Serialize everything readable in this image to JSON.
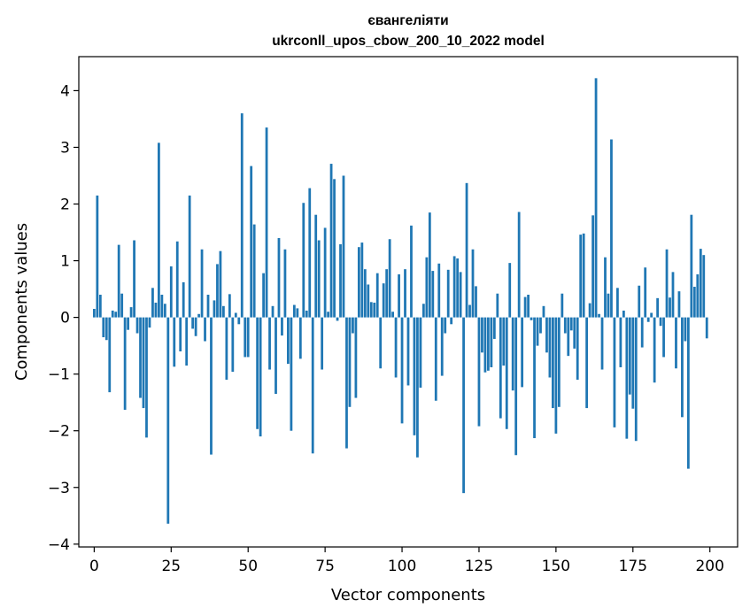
{
  "chart_data": {
    "type": "bar",
    "title_line1": "євангеліяти",
    "title_line2": "ukrconll_upos_cbow_200_10_2022 model",
    "xlabel": "Vector components",
    "ylabel": "Components values",
    "xlim": [
      -5,
      209
    ],
    "ylim": [
      -4.05,
      4.6
    ],
    "xticks": [
      0,
      25,
      50,
      75,
      100,
      125,
      150,
      175,
      200
    ],
    "yticks": [
      -4,
      -3,
      -2,
      -1,
      0,
      1,
      2,
      3,
      4
    ],
    "bar_color": "#1f77b4",
    "x": [
      0,
      1,
      2,
      3,
      4,
      5,
      6,
      7,
      8,
      9,
      10,
      11,
      12,
      13,
      14,
      15,
      16,
      17,
      18,
      19,
      20,
      21,
      22,
      23,
      24,
      25,
      26,
      27,
      28,
      29,
      30,
      31,
      32,
      33,
      34,
      35,
      36,
      37,
      38,
      39,
      40,
      41,
      42,
      43,
      44,
      45,
      46,
      47,
      48,
      49,
      50,
      51,
      52,
      53,
      54,
      55,
      56,
      57,
      58,
      59,
      60,
      61,
      62,
      63,
      64,
      65,
      66,
      67,
      68,
      69,
      70,
      71,
      72,
      73,
      74,
      75,
      76,
      77,
      78,
      79,
      80,
      81,
      82,
      83,
      84,
      85,
      86,
      87,
      88,
      89,
      90,
      91,
      92,
      93,
      94,
      95,
      96,
      97,
      98,
      99,
      100,
      101,
      102,
      103,
      104,
      105,
      106,
      107,
      108,
      109,
      110,
      111,
      112,
      113,
      114,
      115,
      116,
      117,
      118,
      119,
      120,
      121,
      122,
      123,
      124,
      125,
      126,
      127,
      128,
      129,
      130,
      131,
      132,
      133,
      134,
      135,
      136,
      137,
      138,
      139,
      140,
      141,
      142,
      143,
      144,
      145,
      146,
      147,
      148,
      149,
      150,
      151,
      152,
      153,
      154,
      155,
      156,
      157,
      158,
      159,
      160,
      161,
      162,
      163,
      164,
      165,
      166,
      167,
      168,
      169,
      170,
      171,
      172,
      173,
      174,
      175,
      176,
      177,
      178,
      179,
      180,
      181,
      182,
      183,
      184,
      185,
      186,
      187,
      188,
      189,
      190,
      191,
      192,
      193,
      194,
      195,
      196,
      197,
      198,
      199
    ],
    "values": [
      0.15,
      2.15,
      0.4,
      -0.35,
      -0.4,
      -1.32,
      0.12,
      0.1,
      1.28,
      0.42,
      -1.63,
      -0.22,
      0.18,
      1.36,
      -0.28,
      -1.42,
      -1.6,
      -2.12,
      -0.18,
      0.52,
      0.26,
      3.08,
      0.4,
      0.24,
      -3.64,
      0.9,
      -0.87,
      1.34,
      -0.6,
      0.62,
      -0.85,
      2.15,
      -0.2,
      -0.33,
      0.06,
      1.2,
      -0.42,
      0.4,
      -2.42,
      0.3,
      0.94,
      1.17,
      0.2,
      -1.1,
      0.41,
      -0.96,
      0.08,
      -0.12,
      3.6,
      -0.7,
      -0.7,
      2.67,
      1.64,
      -1.97,
      -2.1,
      0.78,
      3.35,
      -0.92,
      0.2,
      -1.35,
      1.4,
      -0.32,
      1.2,
      -0.82,
      -2.0,
      0.22,
      0.16,
      -0.73,
      2.02,
      0.12,
      2.28,
      -2.4,
      1.81,
      1.36,
      -0.92,
      1.58,
      0.1,
      2.71,
      2.44,
      -0.06,
      1.29,
      2.5,
      -2.31,
      -1.58,
      -0.28,
      -1.42,
      1.24,
      1.32,
      0.85,
      0.58,
      0.27,
      0.26,
      0.78,
      -0.9,
      0.6,
      0.85,
      1.38,
      0.1,
      -1.06,
      0.76,
      -1.87,
      0.85,
      -1.2,
      1.62,
      -2.08,
      -2.47,
      -1.24,
      0.24,
      1.06,
      1.85,
      0.82,
      -1.47,
      0.95,
      -1.03,
      -0.28,
      0.84,
      -0.12,
      1.08,
      1.04,
      0.8,
      -3.1,
      2.37,
      0.22,
      1.2,
      0.55,
      -1.92,
      -0.62,
      -0.97,
      -0.94,
      -0.88,
      -0.38,
      0.42,
      -1.78,
      -0.85,
      -1.97,
      0.96,
      -1.29,
      -2.43,
      1.86,
      -1.23,
      0.36,
      0.4,
      -0.05,
      -2.13,
      -0.5,
      -0.28,
      0.2,
      -0.62,
      -1.06,
      -1.6,
      -2.05,
      -1.58,
      0.42,
      -0.28,
      -0.68,
      -0.23,
      -0.55,
      -1.1,
      1.46,
      1.48,
      -1.6,
      0.25,
      1.8,
      4.22,
      0.06,
      -0.92,
      1.06,
      0.42,
      3.14,
      -1.94,
      0.52,
      -0.88,
      0.12,
      -2.14,
      -1.36,
      -1.61,
      -2.18,
      0.56,
      -0.53,
      0.88,
      -0.08,
      0.08,
      -1.15,
      0.34,
      -0.15,
      -0.7,
      1.2,
      0.35,
      0.8,
      -0.9,
      0.46,
      -1.76,
      -0.42,
      -2.67,
      1.81,
      0.54,
      0.76,
      1.21,
      1.1,
      -0.37
    ]
  }
}
